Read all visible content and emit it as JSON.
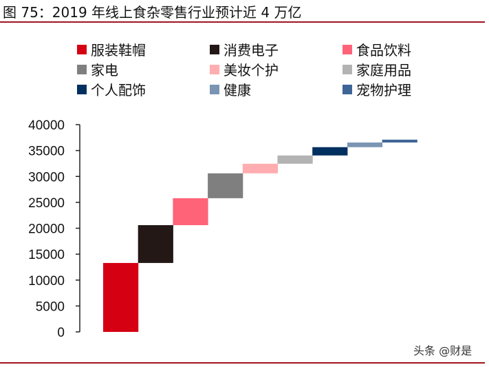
{
  "title": "图 75：2019 年线上食杂零售行业预计近 4 万亿",
  "watermark": "头条 @财是",
  "chart_data": {
    "type": "waterfall",
    "title": "",
    "xlabel": "",
    "ylabel": "",
    "ylim": [
      0,
      40000
    ],
    "yticks": [
      "0",
      "5000",
      "10000",
      "15000",
      "20000",
      "25000",
      "30000",
      "35000",
      "40000"
    ],
    "grid": false,
    "legend_position": "top",
    "categories": [
      "服装鞋帽",
      "消费电子",
      "食品饮料",
      "家电",
      "美妆个护",
      "家庭用品",
      "个人配饰",
      "健康",
      "宠物护理"
    ],
    "values": [
      13300,
      7300,
      5200,
      4800,
      1850,
      1600,
      1600,
      900,
      550
    ],
    "colors": [
      "#d50012",
      "#231815",
      "#ff6378",
      "#7f7f7f",
      "#ffadb0",
      "#b3b3b3",
      "#00305f",
      "#7a95b3",
      "#3d6596"
    ]
  }
}
